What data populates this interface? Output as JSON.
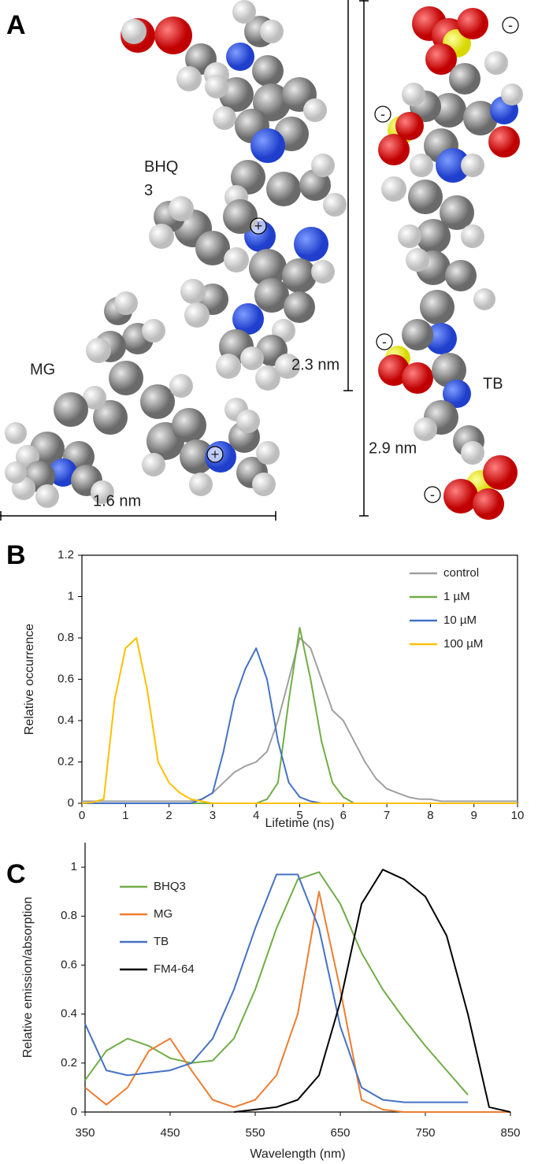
{
  "panel_a": {
    "label": "A",
    "molecules": [
      "BHQ 3",
      "MG",
      "TB"
    ],
    "dimensions": [
      "2.3 nm",
      "2.9 nm",
      "1.6 nm"
    ],
    "charges": [
      "+",
      "+",
      "-",
      "-",
      "-",
      "-"
    ]
  },
  "chart_data": [
    {
      "type": "line",
      "label": "B",
      "xlabel": "Lifetime (ns)",
      "ylabel": "Relative occurrence",
      "xlim": [
        0,
        10
      ],
      "ylim": [
        0,
        1.2
      ],
      "xticks": [
        0,
        1,
        2,
        3,
        4,
        5,
        6,
        7,
        8,
        9,
        10
      ],
      "yticks": [
        0,
        0.2,
        0.4,
        0.6,
        0.8,
        1,
        1.2
      ],
      "frame": true,
      "legend": "upper right",
      "x": [
        0,
        0.25,
        0.5,
        0.75,
        1,
        1.25,
        1.5,
        1.75,
        2,
        2.25,
        2.5,
        2.75,
        3,
        3.25,
        3.5,
        3.75,
        4,
        4.25,
        4.5,
        4.75,
        5,
        5.25,
        5.5,
        5.75,
        6,
        6.25,
        6.5,
        6.75,
        7,
        7.25,
        7.5,
        7.75,
        8,
        8.25,
        8.5,
        8.75,
        9,
        9.25,
        9.5,
        9.75,
        10
      ],
      "series": [
        {
          "name": "control",
          "color": "#a0a0a0",
          "values": [
            0.01,
            0.01,
            0.01,
            0.01,
            0.01,
            0.01,
            0.01,
            0.01,
            0.01,
            0.01,
            0.01,
            0.02,
            0.05,
            0.1,
            0.15,
            0.18,
            0.2,
            0.25,
            0.4,
            0.6,
            0.8,
            0.75,
            0.6,
            0.45,
            0.4,
            0.3,
            0.2,
            0.12,
            0.07,
            0.05,
            0.03,
            0.02,
            0.02,
            0.01,
            0.01,
            0.01,
            0.01,
            0.01,
            0.01,
            0.01,
            0.01
          ]
        },
        {
          "name": "1 µM",
          "color": "#70ad47",
          "values": [
            0,
            0,
            0,
            0,
            0,
            0,
            0,
            0,
            0,
            0,
            0,
            0,
            0,
            0,
            0,
            0,
            0,
            0.02,
            0.1,
            0.5,
            0.85,
            0.6,
            0.3,
            0.1,
            0.03,
            0,
            0,
            0,
            0,
            0,
            0,
            0,
            0,
            0,
            0,
            0,
            0,
            0,
            0,
            0,
            0
          ]
        },
        {
          "name": "10 µM",
          "color": "#4472c4",
          "values": [
            0,
            0,
            0,
            0,
            0,
            0,
            0,
            0,
            0,
            0,
            0,
            0.02,
            0.05,
            0.25,
            0.5,
            0.65,
            0.75,
            0.6,
            0.3,
            0.1,
            0.03,
            0.01,
            0,
            0,
            0,
            0,
            0,
            0,
            0,
            0,
            0,
            0,
            0,
            0,
            0,
            0,
            0,
            0,
            0,
            0,
            0
          ]
        },
        {
          "name": "100 µM",
          "color": "#ffc000",
          "values": [
            0,
            0.005,
            0.02,
            0.5,
            0.75,
            0.8,
            0.55,
            0.2,
            0.1,
            0.05,
            0.02,
            0.01,
            0,
            0,
            0,
            0,
            0,
            0,
            0,
            0,
            0,
            0,
            0,
            0,
            0,
            0,
            0,
            0,
            0,
            0,
            0,
            0,
            0,
            0,
            0,
            0,
            0,
            0,
            0,
            0,
            0
          ]
        }
      ]
    },
    {
      "type": "line",
      "label": "C",
      "xlabel": "Wavelength (nm)",
      "ylabel": "Relative emission/absorption",
      "xlim": [
        350,
        850
      ],
      "ylim": [
        0,
        1.1
      ],
      "xticks": [
        350,
        450,
        550,
        650,
        750,
        850
      ],
      "yticks": [
        0,
        0.2,
        0.4,
        0.6,
        0.8,
        1
      ],
      "frame": false,
      "legend": "upper left",
      "x": [
        350,
        375,
        400,
        425,
        450,
        475,
        500,
        525,
        550,
        575,
        600,
        625,
        650,
        675,
        700,
        725,
        750,
        775,
        800,
        825,
        850
      ],
      "series": [
        {
          "name": "BHQ3",
          "color": "#70ad47",
          "values": [
            0.13,
            0.25,
            0.3,
            0.27,
            0.22,
            0.2,
            0.21,
            0.3,
            0.5,
            0.75,
            0.95,
            0.98,
            0.85,
            0.65,
            0.5,
            0.38,
            0.27,
            0.17,
            0.07,
            null,
            null
          ]
        },
        {
          "name": "MG",
          "color": "#ed7d31",
          "values": [
            0.1,
            0.03,
            0.1,
            0.25,
            0.3,
            0.17,
            0.05,
            0.02,
            0.05,
            0.15,
            0.4,
            0.9,
            0.5,
            0.05,
            0.01,
            0,
            0,
            0,
            0,
            0,
            0
          ]
        },
        {
          "name": "TB",
          "color": "#4472c4",
          "values": [
            0.36,
            0.17,
            0.15,
            0.16,
            0.17,
            0.2,
            0.3,
            0.5,
            0.75,
            0.97,
            0.97,
            0.75,
            0.35,
            0.1,
            0.05,
            0.04,
            0.04,
            0.04,
            0.04,
            null,
            null
          ]
        },
        {
          "name": "FM4-64",
          "color": "#000000",
          "values": [
            null,
            null,
            null,
            null,
            null,
            null,
            null,
            0,
            0.01,
            0.02,
            0.05,
            0.15,
            0.45,
            0.85,
            0.99,
            0.95,
            0.88,
            0.72,
            0.4,
            0.02,
            0
          ]
        }
      ]
    }
  ]
}
